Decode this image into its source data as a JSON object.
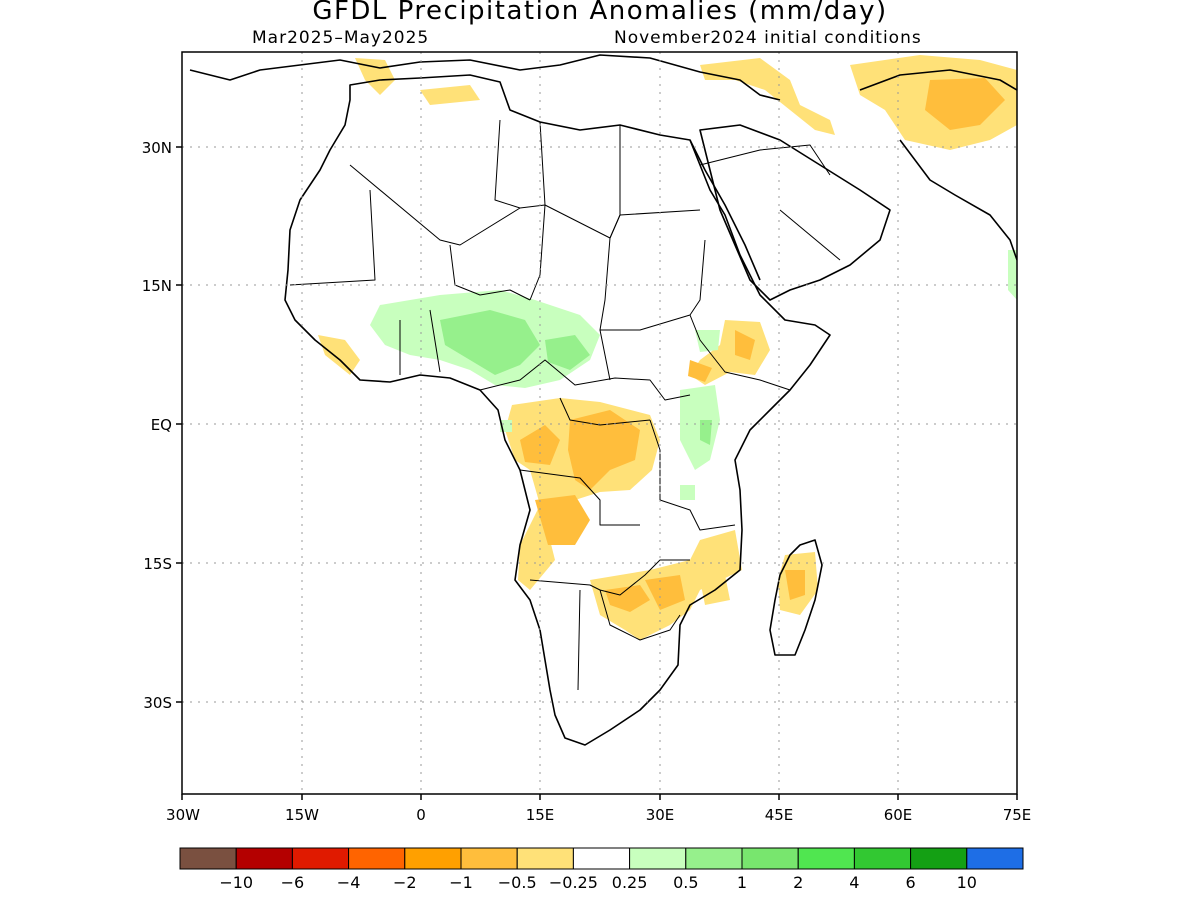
{
  "title": "GFDL Precipitation Anomalies (mm/day)",
  "subtitle_left": "Mar2025–May2025",
  "subtitle_right": "November2024 initial conditions",
  "lat_ticks": [
    "30N",
    "15N",
    "EQ",
    "15S",
    "30S"
  ],
  "lon_ticks": [
    "30W",
    "15W",
    "0",
    "15E",
    "30E",
    "45E",
    "60E",
    "75E"
  ],
  "colorbar": {
    "labels": [
      "−10",
      "−6",
      "−4",
      "−2",
      "−1",
      "−0.5",
      "−0.25",
      "0.25",
      "0.5",
      "1",
      "2",
      "4",
      "6",
      "10"
    ],
    "colors": [
      "#7a5040",
      "#b40000",
      "#e01a00",
      "#ff6400",
      "#ffa000",
      "#ffbe3c",
      "#ffe178",
      "#ffffff",
      "#c8ffbe",
      "#96f08c",
      "#78e66e",
      "#50e650",
      "#32c832",
      "#14a014",
      "#1e6ee6"
    ]
  },
  "palette": {
    "dry_light": "#ffe178",
    "dry_mid": "#ffbe3c",
    "wet_light": "#c8ffbe",
    "wet_mid": "#96f08c"
  }
}
